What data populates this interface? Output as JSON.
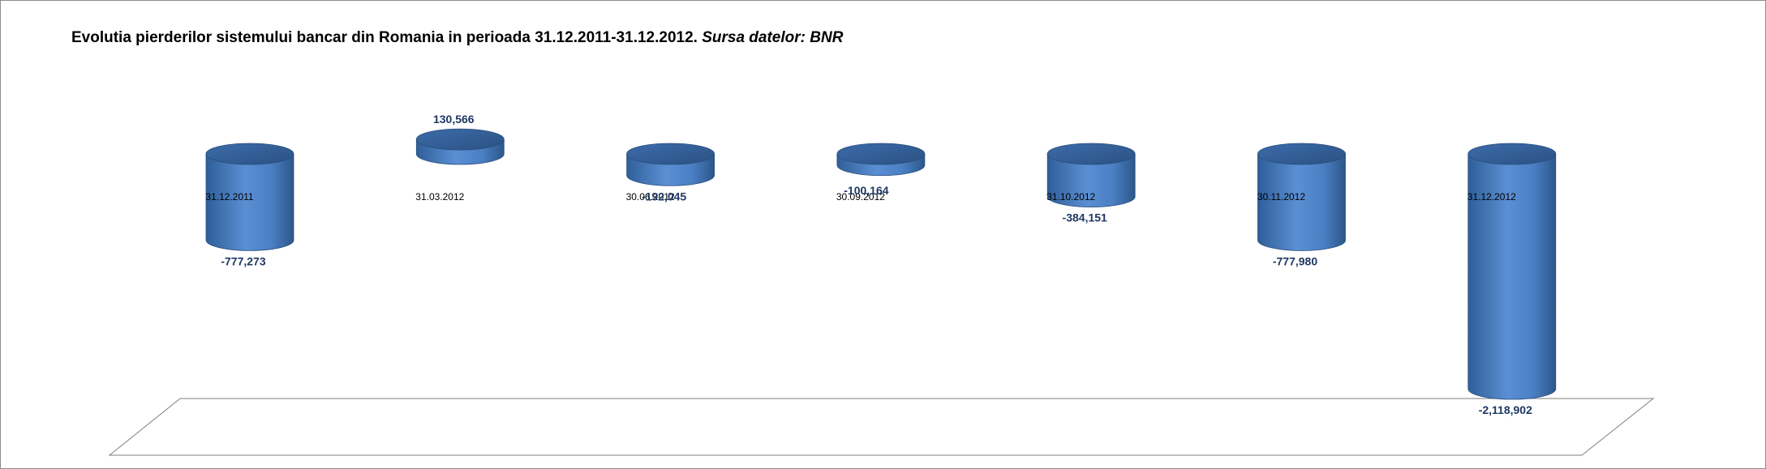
{
  "chart_data": {
    "type": "bar",
    "title": "Evolutia pierderilor sistemului bancar din Romania in perioada 31.12.2011-31.12.2012.",
    "subtitle": "Sursa datelor: BNR",
    "categories": [
      "31.12.2011",
      "31.03.2012",
      "30.06.2012",
      "30.09.2012",
      "31.10.2012",
      "30.11.2012",
      "31.12.2012"
    ],
    "values": [
      -777273,
      130566,
      -192045,
      -100164,
      -384151,
      -777980,
      -2118902
    ],
    "data_labels": [
      "-777,273",
      "130,566",
      "-192,045",
      "-100,164",
      "-384,151",
      "-777,980",
      "-2,118,902"
    ],
    "xlabel": "",
    "ylabel": "",
    "grid": false,
    "legend": "none",
    "bar_color": "#4f81bd"
  }
}
